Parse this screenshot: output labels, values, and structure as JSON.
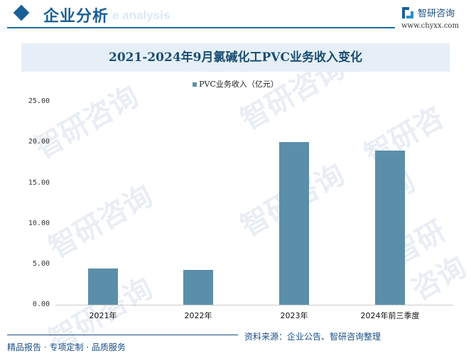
{
  "header": {
    "title": "企业分析",
    "subtitle_watermark": "e analysis",
    "logo_text": "智研咨询",
    "logo_url": "www.chyxx.com"
  },
  "watermark": "智研咨询",
  "chart_data": {
    "type": "bar",
    "title": "2021-2024年9月氯碱化工PVC业务收入变化",
    "categories": [
      "2021年",
      "2022年",
      "2023年",
      "2024年前三季度"
    ],
    "series": [
      {
        "name": "PVC业务收入（亿元）",
        "values": [
          4.46,
          4.28,
          20.0,
          18.97
        ],
        "color": "#5b8fa9"
      }
    ],
    "xlabel": "",
    "ylabel": "",
    "ylim": [
      0,
      25
    ],
    "yticks": [
      "0.00",
      "5.00",
      "10.00",
      "15.00",
      "20.00",
      "25.00"
    ],
    "grid": false,
    "legend_position": "top"
  },
  "footer": {
    "slogan": "精品报告 · 专项定制 · 品质服务",
    "source": "资料来源：企业公告、智研咨询整理"
  }
}
